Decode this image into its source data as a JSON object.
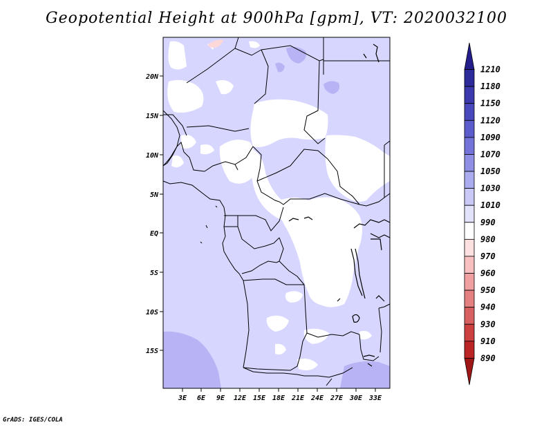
{
  "title": "Geopotential Height at 900hPa [gpm], VT: 2020032100",
  "credit": "GrADS: IGES/COLA",
  "map": {
    "lat_ticks": [
      "20N",
      "15N",
      "10N",
      "5N",
      "EQ",
      "5S",
      "10S",
      "15S"
    ],
    "lon_ticks": [
      "3E",
      "6E",
      "9E",
      "12E",
      "15E",
      "18E",
      "21E",
      "24E",
      "27E",
      "30E",
      "33E"
    ]
  },
  "colorbar": {
    "labels": [
      "1210",
      "1180",
      "1150",
      "1120",
      "1090",
      "1070",
      "1050",
      "1030",
      "1010",
      "990",
      "980",
      "970",
      "960",
      "950",
      "940",
      "930",
      "910",
      "890"
    ],
    "colors": [
      "#231e8c",
      "#2d2a9c",
      "#3b39ad",
      "#4a48bd",
      "#5c5ccc",
      "#7373d9",
      "#8f8fe6",
      "#ababef",
      "#c9c9f7",
      "#e2e2fb",
      "#ffffff",
      "#fde0e0",
      "#f8c0c0",
      "#f0a0a0",
      "#e58080",
      "#d96060",
      "#cc4040",
      "#bb2525",
      "#a01515"
    ]
  },
  "field_colors": {
    "base": "#d6d6ff",
    "high": "#b8b3f5",
    "land_low": "#ffffff",
    "pink": "#fcd8d8"
  }
}
